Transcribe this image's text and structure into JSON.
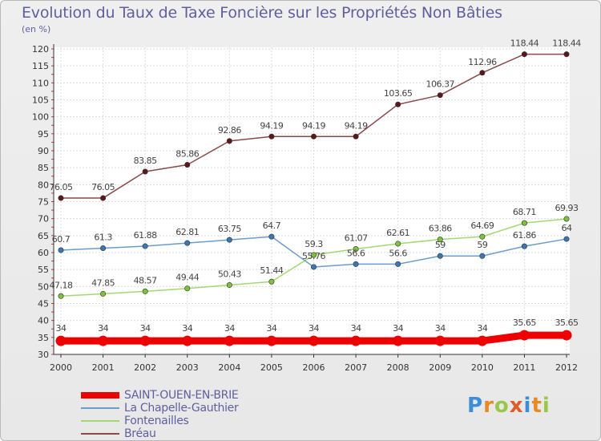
{
  "title": "Evolution du Taux de Taxe Foncière sur les Propriétés Non Bâties",
  "unit_label": "(en %)",
  "logo": {
    "letters": [
      "P",
      "r",
      "o",
      "x",
      "i",
      "t",
      "i"
    ],
    "colors": [
      "#3a8fd6",
      "#e58a25",
      "#9ac74a",
      "#e05a2a",
      "#3a8fd6",
      "#e58a25",
      "#9ac74a"
    ]
  },
  "chart_data": {
    "type": "line",
    "x": [
      "2000",
      "2001",
      "2002",
      "2003",
      "2004",
      "2005",
      "2006",
      "2007",
      "2008",
      "2009",
      "2010",
      "2011",
      "2012"
    ],
    "ylim": [
      30,
      120
    ],
    "yticks": [
      30,
      35,
      40,
      45,
      50,
      55,
      60,
      65,
      70,
      75,
      80,
      85,
      90,
      95,
      100,
      105,
      110,
      115,
      120
    ],
    "grid": true,
    "legend_position": "bottom-left",
    "series": [
      {
        "name": "SAINT-OUEN-EN-BRIE",
        "color": "#ee0000",
        "marker": "#ee0000",
        "values": [
          34,
          34,
          34,
          34,
          34,
          34,
          34,
          34,
          34,
          34,
          34,
          35.65,
          35.65
        ],
        "labels": [
          "34",
          "34",
          "34",
          "34",
          "34",
          "34",
          "34",
          "34",
          "34",
          "34",
          "34",
          "35.65",
          "35.65"
        ]
      },
      {
        "name": "La Chapelle-Gauthier",
        "color": "#6a9ccc",
        "marker": "#3a78b4",
        "values": [
          60.7,
          61.3,
          61.88,
          62.81,
          63.75,
          64.7,
          55.76,
          56.6,
          56.6,
          59,
          59,
          61.86,
          64
        ],
        "labels": [
          "60.7",
          "61.3",
          "61.88",
          "62.81",
          "63.75",
          "64.7",
          "55.76",
          "56.6",
          "56.6",
          "59",
          "59",
          "61.86",
          "64"
        ]
      },
      {
        "name": "Fontenailles",
        "color": "#a4d870",
        "marker": "#7ec23c",
        "values": [
          47.18,
          47.85,
          48.57,
          49.44,
          50.43,
          51.44,
          59.3,
          61.07,
          62.61,
          63.86,
          64.69,
          68.71,
          69.93
        ],
        "labels": [
          "47.18",
          "47.85",
          "48.57",
          "49.44",
          "50.43",
          "51.44",
          "59.3",
          "61.07",
          "62.61",
          "63.86",
          "64.69",
          "68.71",
          "69.93"
        ]
      },
      {
        "name": "Bréau",
        "color": "#8a4a4a",
        "marker": "#5a1818",
        "values": [
          76.05,
          76.05,
          83.85,
          85.86,
          92.86,
          94.19,
          94.19,
          94.19,
          103.65,
          106.37,
          112.96,
          118.44,
          118.44
        ],
        "labels": [
          "76.05",
          "76.05",
          "83.85",
          "85.86",
          "92.86",
          "94.19",
          "94.19",
          "94.19",
          "103.65",
          "106.37",
          "112.96",
          "118.44",
          "118.44"
        ]
      }
    ]
  }
}
